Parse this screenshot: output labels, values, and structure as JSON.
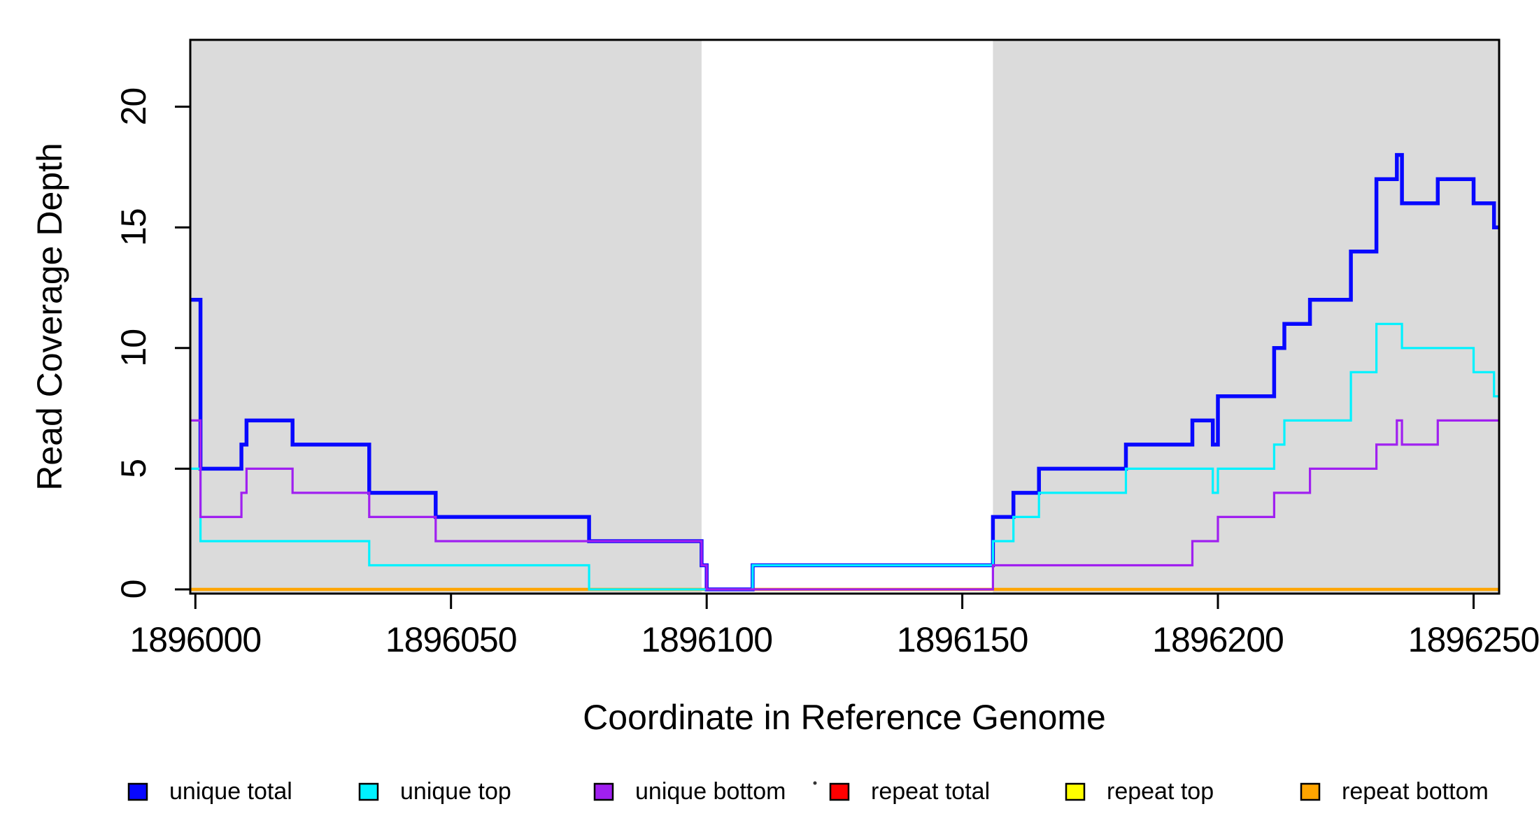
{
  "chart_data": {
    "type": "line",
    "subtype": "step-after",
    "xlabel": "Coordinate in Reference Genome",
    "ylabel": "Read Coverage Depth",
    "xlim": [
      1895999,
      1896255
    ],
    "ylim": [
      0,
      22.9
    ],
    "x_ticks": [
      "1896000",
      "1896050",
      "1896100",
      "1896150",
      "1896200",
      "1896250"
    ],
    "x_tick_values": [
      1896000,
      1896050,
      1896100,
      1896150,
      1896200,
      1896250
    ],
    "y_ticks": [
      "0",
      "5",
      "10",
      "15",
      "20"
    ],
    "y_tick_values": [
      0,
      5,
      10,
      15,
      20
    ],
    "grid": false,
    "legend_position": "bottom-horizontal",
    "background_color": "#FFFFFF",
    "shaded_regions": {
      "color": "#DBDBDB",
      "ranges": [
        [
          1895999,
          1896099
        ],
        [
          1896156,
          1896255
        ]
      ]
    },
    "series": [
      {
        "name": "unique total",
        "color": "#0808FF",
        "points": [
          [
            1895999,
            12
          ],
          [
            1896001,
            5
          ],
          [
            1896009,
            6
          ],
          [
            1896010,
            7
          ],
          [
            1896019,
            6
          ],
          [
            1896034,
            4
          ],
          [
            1896047,
            3
          ],
          [
            1896077,
            2
          ],
          [
            1896099,
            1
          ],
          [
            1896100,
            0
          ],
          [
            1896109,
            1
          ],
          [
            1896156,
            3
          ],
          [
            1896160,
            4
          ],
          [
            1896165,
            5
          ],
          [
            1896182,
            6
          ],
          [
            1896195,
            7
          ],
          [
            1896199,
            6
          ],
          [
            1896200,
            8
          ],
          [
            1896211,
            10
          ],
          [
            1896213,
            11
          ],
          [
            1896218,
            12
          ],
          [
            1896226,
            14
          ],
          [
            1896231,
            17
          ],
          [
            1896235,
            18
          ],
          [
            1896236,
            16
          ],
          [
            1896243,
            17
          ],
          [
            1896250,
            16
          ],
          [
            1896254,
            15
          ]
        ]
      },
      {
        "name": "unique top",
        "color": "#00F2FF",
        "points": [
          [
            1895999,
            5
          ],
          [
            1896001,
            2
          ],
          [
            1896034,
            1
          ],
          [
            1896077,
            0
          ],
          [
            1896109,
            1
          ],
          [
            1896156,
            2
          ],
          [
            1896160,
            3
          ],
          [
            1896165,
            4
          ],
          [
            1896182,
            5
          ],
          [
            1896199,
            4
          ],
          [
            1896200,
            5
          ],
          [
            1896211,
            6
          ],
          [
            1896213,
            7
          ],
          [
            1896226,
            9
          ],
          [
            1896231,
            11
          ],
          [
            1896236,
            10
          ],
          [
            1896250,
            9
          ],
          [
            1896254,
            8
          ]
        ]
      },
      {
        "name": "unique bottom",
        "color": "#A020F0",
        "points": [
          [
            1895999,
            7
          ],
          [
            1896001,
            3
          ],
          [
            1896009,
            4
          ],
          [
            1896010,
            5
          ],
          [
            1896019,
            4
          ],
          [
            1896034,
            3
          ],
          [
            1896047,
            2
          ],
          [
            1896099,
            1
          ],
          [
            1896100,
            0
          ],
          [
            1896156,
            1
          ],
          [
            1896195,
            2
          ],
          [
            1896200,
            3
          ],
          [
            1896211,
            4
          ],
          [
            1896218,
            5
          ],
          [
            1896231,
            6
          ],
          [
            1896235,
            7
          ],
          [
            1896236,
            6
          ],
          [
            1896243,
            7
          ]
        ]
      },
      {
        "name": "repeat total",
        "color": "#FF0000",
        "points": [
          [
            1895999,
            0
          ]
        ]
      },
      {
        "name": "repeat top",
        "color": "#FFFF00",
        "points": [
          [
            1895999,
            0
          ]
        ]
      },
      {
        "name": "repeat bottom",
        "color": "#FFA500",
        "points": [
          [
            1895999,
            0
          ]
        ]
      }
    ]
  },
  "legend": {
    "items": [
      {
        "label": "unique total",
        "color": "#0808FF"
      },
      {
        "label": "unique top",
        "color": "#00F2FF"
      },
      {
        "label": "unique bottom",
        "color": "#A020F0"
      },
      {
        "label": "repeat total",
        "color": "#FF0000"
      },
      {
        "label": "repeat top",
        "color": "#FFFF00"
      },
      {
        "label": "repeat bottom",
        "color": "#FFA500"
      }
    ]
  }
}
